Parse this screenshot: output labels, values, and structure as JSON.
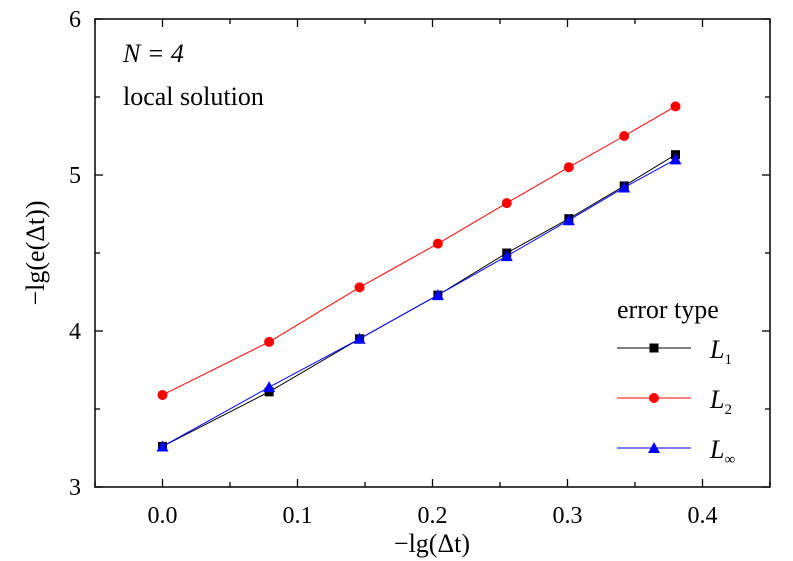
{
  "chart_data": {
    "type": "line",
    "xlabel": "−lg(Δt)",
    "ylabel": "−lg(e(Δt))",
    "xlim": [
      -0.05,
      0.45
    ],
    "ylim": [
      3,
      6
    ],
    "xticks": [
      "0.0",
      "0.1",
      "0.2",
      "0.3",
      "0.4"
    ],
    "xtick_values": [
      0,
      0.1,
      0.2,
      0.3,
      0.4
    ],
    "yticks": [
      "3",
      "4",
      "5",
      "6"
    ],
    "ytick_values": [
      3,
      4,
      5,
      6
    ],
    "grid": false,
    "annotations": [
      "N = 4",
      "local solution"
    ],
    "legend": {
      "title": "error type",
      "placement": "right"
    },
    "x": [
      0,
      0.079,
      0.146,
      0.204,
      0.255,
      0.301,
      0.342,
      0.38
    ],
    "series": [
      {
        "name": "L1",
        "label_base": "L",
        "label_sub": "1",
        "color": "#000000",
        "marker": "square",
        "values": [
          3.26,
          3.61,
          3.95,
          4.23,
          4.5,
          4.72,
          4.93,
          5.13
        ]
      },
      {
        "name": "L2",
        "label_base": "L",
        "label_sub": "2",
        "color": "#ff0000",
        "marker": "circle",
        "values": [
          3.59,
          3.93,
          4.28,
          4.56,
          4.82,
          5.05,
          5.25,
          5.44
        ]
      },
      {
        "name": "L∞",
        "label_base": "L",
        "label_sub": "∞",
        "color": "#0000ff",
        "marker": "triangle",
        "values": [
          3.26,
          3.64,
          3.95,
          4.23,
          4.48,
          4.71,
          4.92,
          5.1
        ]
      }
    ]
  }
}
